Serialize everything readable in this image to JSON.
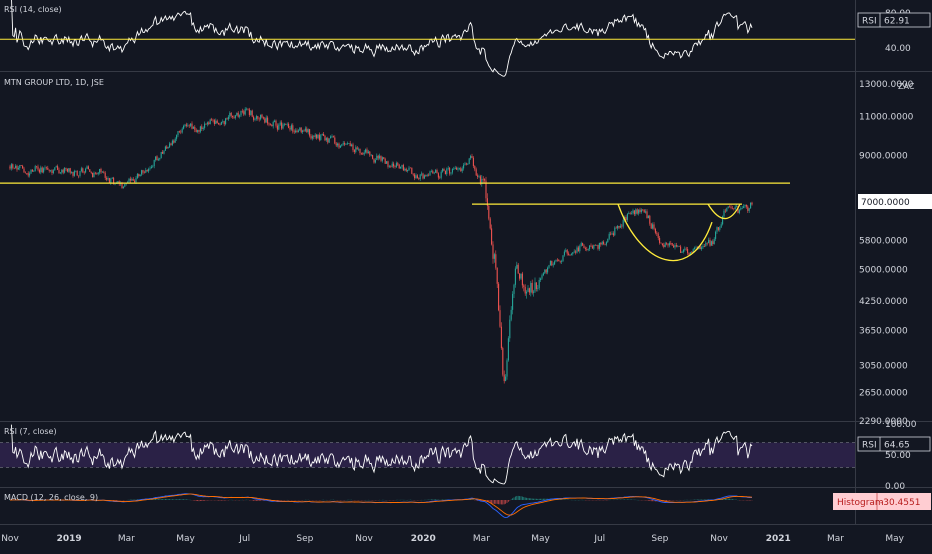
{
  "panels": {
    "rsi14": {
      "title": "RSI (14, close)",
      "badge_label": "RSI",
      "badge_value": "62.91",
      "ticks": [
        "80.00",
        "40.00"
      ]
    },
    "price": {
      "title": "MTN GROUP LTD, 1D, JSE",
      "currency": "ZAC",
      "price_badge": "7000.0000",
      "ticks": [
        "13000.0000",
        "11000.0000",
        "9000.0000",
        "7000.0000",
        "5800.0000",
        "5000.0000",
        "4250.0000",
        "3650.0000",
        "3050.0000",
        "2650.0000",
        "2290.0000"
      ]
    },
    "rsi7": {
      "title": "RSI (7, close)",
      "badge_label": "RSI",
      "badge_value": "64.65",
      "ticks": [
        "100.00",
        "50.00",
        "0.00"
      ]
    },
    "macd": {
      "title": "MACD (12, 26, close, 9)",
      "badge_label": "Histogram",
      "badge_value": "-30.4551"
    }
  },
  "time_axis": [
    "Nov",
    "2019",
    "Mar",
    "May",
    "Jul",
    "Sep",
    "Nov",
    "2020",
    "Mar",
    "May",
    "Jul",
    "Sep",
    "Nov",
    "2021",
    "Mar",
    "May"
  ],
  "colors": {
    "background": "#131722",
    "up_candle": "#26a69a",
    "down_candle": "#ef5350",
    "annotation": "#ffeb3b",
    "rsi_line": "#ffffff",
    "rsi_band": "#2a2146",
    "macd_line": "#2962ff",
    "signal_line": "#ff6d00",
    "hist_badge_bg": "#ffcdd2",
    "hist_badge_fg": "#b71c1c"
  },
  "chart_data": {
    "type": "candlestick",
    "title": "MTN GROUP LTD, 1D, JSE",
    "unit": "ZAC",
    "scale": "log",
    "ylim": [
      2290,
      13000
    ],
    "x": [
      "2018-11",
      "2019-01",
      "2019-03",
      "2019-05",
      "2019-07",
      "2019-09",
      "2019-11",
      "2020-01",
      "2020-03",
      "2020-05",
      "2020-07",
      "2020-09",
      "2020-11",
      "2021-01",
      "2021-03",
      "2021-05"
    ],
    "close_path": [
      {
        "date": "2018-11-01",
        "close": 8500
      },
      {
        "date": "2018-12-15",
        "close": 8300
      },
      {
        "date": "2019-02-01",
        "close": 8200
      },
      {
        "date": "2019-03-01",
        "close": 7600
      },
      {
        "date": "2019-04-01",
        "close": 8800
      },
      {
        "date": "2019-05-01",
        "close": 10300
      },
      {
        "date": "2019-06-01",
        "close": 10700
      },
      {
        "date": "2019-07-01",
        "close": 11300
      },
      {
        "date": "2019-08-01",
        "close": 10600
      },
      {
        "date": "2019-09-01",
        "close": 10100
      },
      {
        "date": "2019-10-01",
        "close": 9600
      },
      {
        "date": "2019-11-01",
        "close": 9200
      },
      {
        "date": "2019-12-01",
        "close": 8500
      },
      {
        "date": "2020-01-01",
        "close": 8100
      },
      {
        "date": "2020-02-01",
        "close": 8300
      },
      {
        "date": "2020-02-20",
        "close": 8800
      },
      {
        "date": "2020-03-05",
        "close": 7400
      },
      {
        "date": "2020-03-15",
        "close": 5200
      },
      {
        "date": "2020-03-25",
        "close": 2700
      },
      {
        "date": "2020-04-05",
        "close": 4900
      },
      {
        "date": "2020-04-20",
        "close": 4400
      },
      {
        "date": "2020-05-05",
        "close": 5000
      },
      {
        "date": "2020-06-01",
        "close": 5500
      },
      {
        "date": "2020-07-01",
        "close": 5700
      },
      {
        "date": "2020-08-01",
        "close": 6600
      },
      {
        "date": "2020-08-15",
        "close": 6900
      },
      {
        "date": "2020-09-01",
        "close": 5800
      },
      {
        "date": "2020-10-01",
        "close": 5300
      },
      {
        "date": "2020-10-25",
        "close": 5700
      },
      {
        "date": "2020-11-10",
        "close": 6900
      },
      {
        "date": "2020-11-25",
        "close": 6600
      },
      {
        "date": "2020-12-05",
        "close": 6950
      }
    ],
    "annotations": {
      "support_level": 7800,
      "neckline": 7000
    },
    "rsi14": {
      "last": 62.91,
      "level": 50,
      "ticks": [
        80,
        40
      ]
    },
    "rsi7": {
      "last": 64.65,
      "upper": 70,
      "lower": 30,
      "ticks": [
        100,
        50,
        0
      ]
    },
    "macd": {
      "histogram_last": -30.4551
    }
  }
}
